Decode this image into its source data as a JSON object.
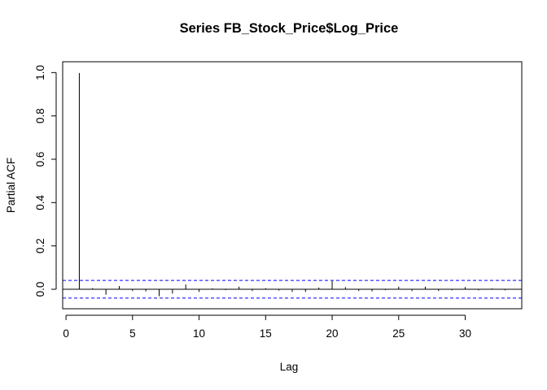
{
  "chart_data": {
    "type": "bar",
    "subtype": "pacf-spikes",
    "title": "Series  FB_Stock_Price$Log_Price",
    "xlabel": "Lag",
    "ylabel": "Partial ACF",
    "xlim": [
      -0.25,
      34.25
    ],
    "ylim": [
      -0.09,
      1.05
    ],
    "x_ticks": [
      0,
      5,
      10,
      15,
      20,
      25,
      30
    ],
    "y_ticks": [
      0.0,
      0.2,
      0.4,
      0.6,
      0.8,
      1.0
    ],
    "y_tick_labels": [
      "0.0",
      "0.2",
      "0.4",
      "0.6",
      "0.8",
      "1.0"
    ],
    "lags": [
      1,
      2,
      3,
      4,
      5,
      6,
      7,
      8,
      9,
      10,
      11,
      12,
      13,
      14,
      15,
      16,
      17,
      18,
      19,
      20,
      21,
      22,
      23,
      24,
      25,
      26,
      27,
      28,
      29,
      30,
      31,
      32,
      33
    ],
    "values": [
      0.998,
      0.005,
      -0.025,
      0.015,
      -0.008,
      -0.01,
      -0.032,
      -0.02,
      0.022,
      -0.012,
      0.004,
      -0.004,
      0.012,
      -0.008,
      0.005,
      -0.006,
      -0.012,
      -0.012,
      0.008,
      0.038,
      0.01,
      -0.008,
      -0.01,
      -0.004,
      0.012,
      -0.008,
      0.012,
      -0.008,
      -0.005,
      0.01,
      -0.005,
      0.004,
      -0.005
    ],
    "confidence_bound": 0.041,
    "colors": {
      "spikes": "#000000",
      "zero_line": "#000000",
      "ci_lines": "#0000ff"
    },
    "grid": false,
    "legend": "none"
  }
}
